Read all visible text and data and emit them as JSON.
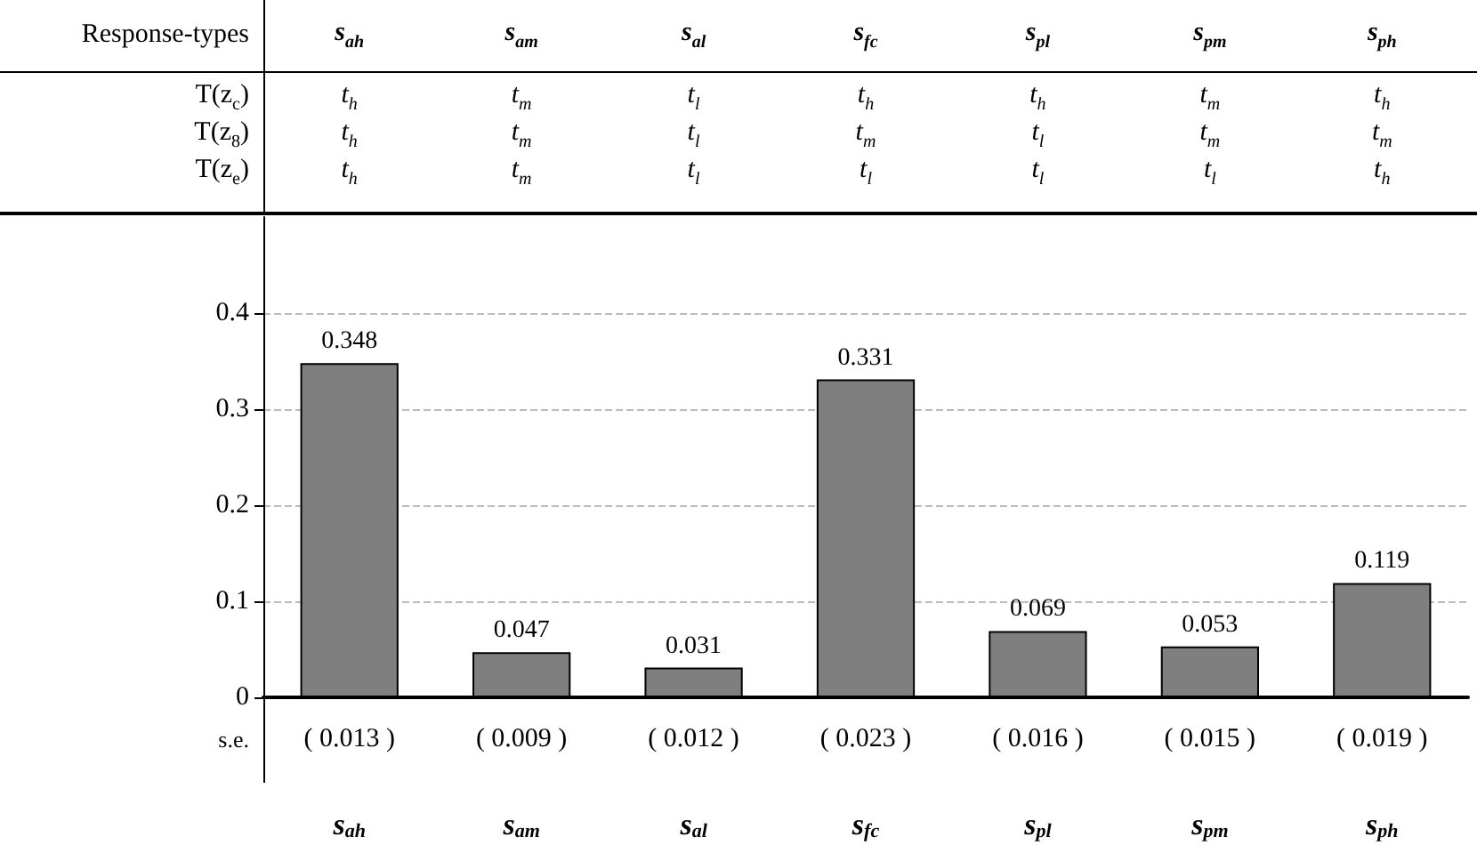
{
  "chart_data": {
    "type": "bar",
    "categories": [
      "s$_{ah}$",
      "s$_{am}$",
      "s$_{al}$",
      "s$_{fc}$",
      "s$_{pl}$",
      "s$_{pm}$",
      "s$_{ph}$"
    ],
    "values": [
      0.348,
      0.047,
      0.031,
      0.331,
      0.069,
      0.053,
      0.119
    ],
    "color": "#7f7f7f",
    "ylim": [
      0,
      0.5
    ],
    "yticks": [
      0,
      0.1,
      0.2,
      0.3,
      0.4
    ],
    "grid": "y",
    "data_labels": true,
    "annotations": [
      "Response-types",
      "T(z$_{c}$)",
      "t$_{h}$",
      "t$_{m}$",
      "t$_{l}$",
      "t$_{h}$",
      "t$_{h}$",
      "t$_{m}$",
      "t$_{h}$",
      "T(z$_{8}$)",
      "t$_{h}$",
      "t$_{m}$",
      "t$_{l}$",
      "t$_{m}$",
      "t$_{l}$",
      "t$_{m}$",
      "t$_{m}$",
      "T(z$_{e}$)",
      "t$_{h}$",
      "t$_{m}$",
      "t$_{l}$",
      "t$_{l}$",
      "t$_{l}$",
      "t$_{l}$",
      "t$_{h}$",
      "s.e.",
      "( 0.013 )",
      "( 0.009 )",
      "( 0.012 )",
      "( 0.023 )",
      "( 0.016 )",
      "( 0.015 )",
      "( 0.019 )"
    ]
  }
}
